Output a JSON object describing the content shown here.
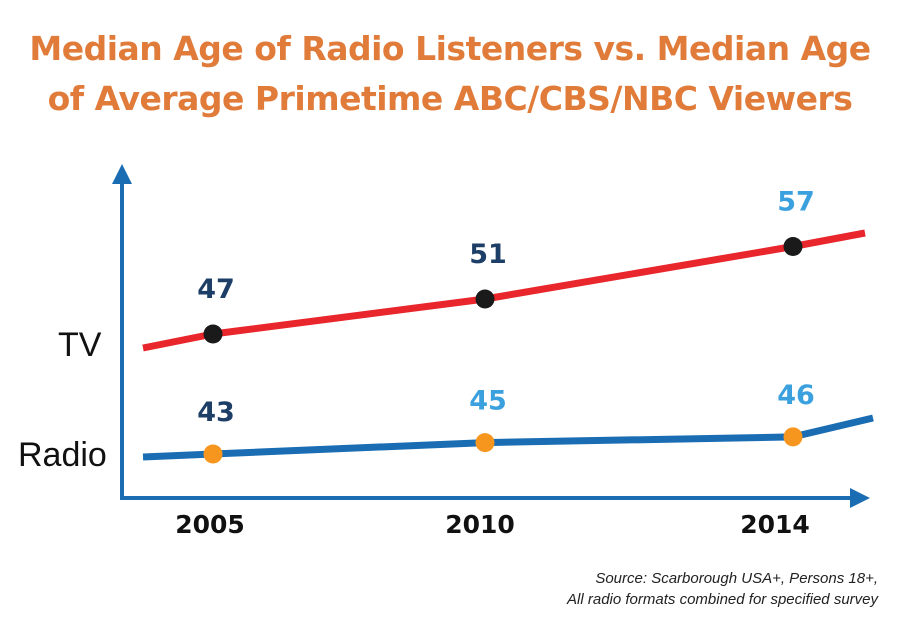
{
  "title": {
    "line1": "Median Age of Radio Listeners vs. Median Age",
    "line2": "of Average Primetime ABC/CBS/NBC Viewers"
  },
  "source": {
    "line1": "Source: Scarborough USA+, Persons 18+,",
    "line2": "All radio formats combined for specified survey"
  },
  "colors": {
    "title": "#e07b39",
    "axis": "#1a6db3",
    "tv_line": "#e8262c",
    "radio_line": "#1a6db3",
    "tv_marker": "#1a1a1a",
    "radio_marker": "#f7961f",
    "label_dark": "#1d3e66",
    "label_light": "#3aa0de"
  },
  "chart_data": {
    "type": "line",
    "title": "Median Age of Radio Listeners vs. Median Age of Average Primetime ABC/CBS/NBC Viewers",
    "categories": [
      "2005",
      "2010",
      "2014"
    ],
    "series": [
      {
        "name": "TV",
        "values": [
          47,
          51,
          57
        ]
      },
      {
        "name": "Radio",
        "values": [
          43,
          45,
          46
        ]
      }
    ],
    "xlabel": "",
    "ylabel": "",
    "grid": false,
    "legend": "series labels on left side"
  }
}
